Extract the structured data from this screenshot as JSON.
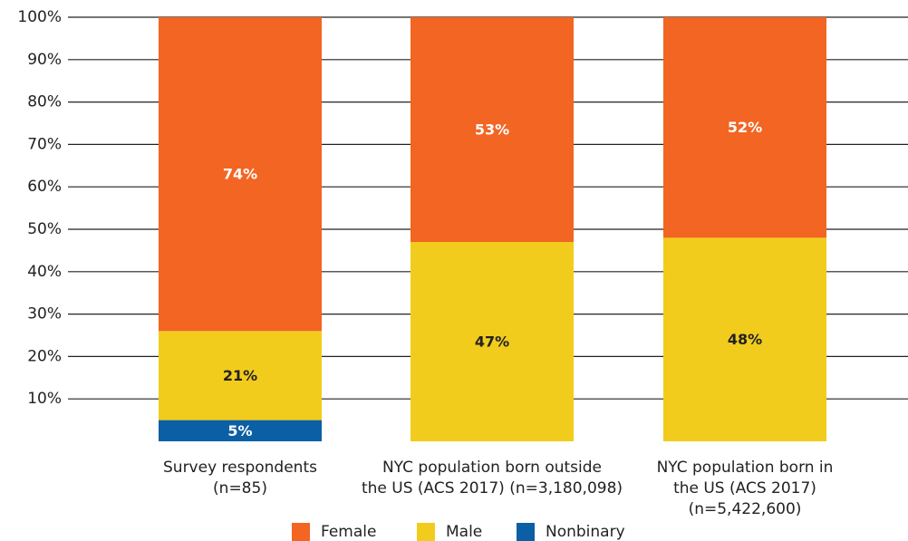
{
  "chart_data": {
    "type": "stacked_bar",
    "categories": [
      [
        "Survey respondents",
        "(n=85)"
      ],
      [
        "NYC population born outside",
        "the US (ACS 2017) (n=3,180,098)"
      ],
      [
        "NYC population born in",
        "the US (ACS 2017)",
        "(n=5,422,600)"
      ]
    ],
    "series": [
      {
        "name": "Nonbinary",
        "color": "#0b5fa5",
        "text_color": "#ffffff",
        "values": [
          5,
          null,
          null
        ],
        "value_labels": [
          "5%",
          null,
          null
        ]
      },
      {
        "name": "Male",
        "color": "#f2cc1c",
        "text_color": "#222222",
        "values": [
          21,
          47,
          48
        ],
        "value_labels": [
          "21%",
          "47%",
          "48%"
        ]
      },
      {
        "name": "Female",
        "color": "#f26522",
        "text_color": "#ffffff",
        "values": [
          74,
          53,
          52
        ],
        "value_labels": [
          "74%",
          "53%",
          "52%"
        ]
      }
    ],
    "legend_order": [
      2,
      1,
      0
    ],
    "ylim": [
      0,
      100
    ],
    "yticks": [
      {
        "value": 10,
        "label": "10%"
      },
      {
        "value": 20,
        "label": "20%"
      },
      {
        "value": 30,
        "label": "30%"
      },
      {
        "value": 40,
        "label": "40%"
      },
      {
        "value": 50,
        "label": "50%"
      },
      {
        "value": 60,
        "label": "60%"
      },
      {
        "value": 70,
        "label": "70%"
      },
      {
        "value": 80,
        "label": "80%"
      },
      {
        "value": 90,
        "label": "90%"
      },
      {
        "value": 100,
        "label": "100%"
      }
    ],
    "grid": true,
    "legend": "bottom"
  }
}
